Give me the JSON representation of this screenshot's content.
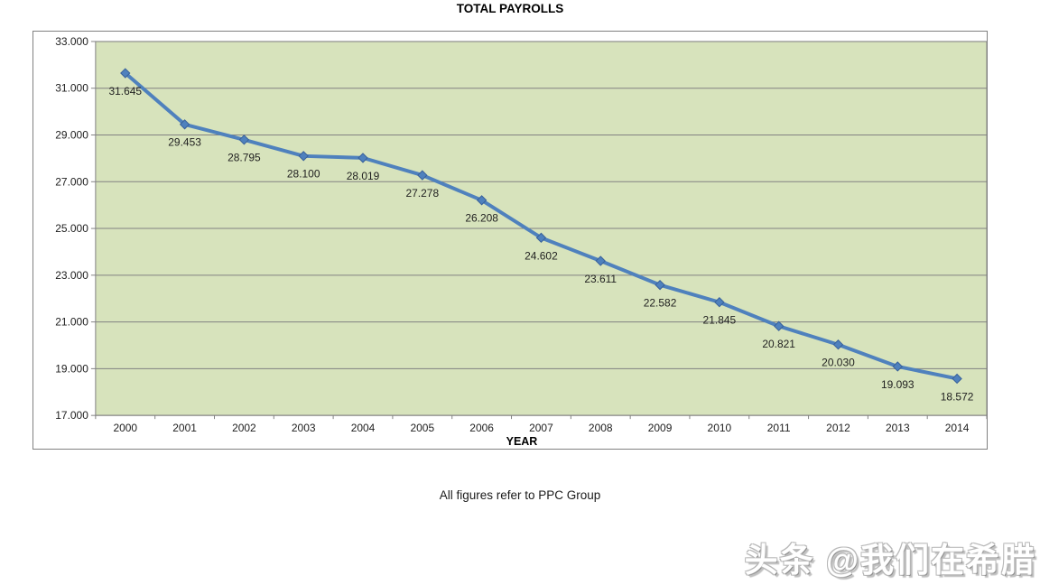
{
  "page": {
    "background": "#ffffff"
  },
  "chart_data": {
    "type": "line",
    "title": "TOTAL PAYROLLS",
    "categories": [
      "2000",
      "2001",
      "2002",
      "2003",
      "2004",
      "2005",
      "2006",
      "2007",
      "2008",
      "2009",
      "2010",
      "2011",
      "2012",
      "2013",
      "2014"
    ],
    "series": [
      {
        "name": "TOTAL PAYROLLS",
        "values": [
          31645,
          29453,
          28795,
          28100,
          28019,
          27278,
          26208,
          24602,
          23611,
          22582,
          21845,
          20821,
          20030,
          19093,
          18572
        ]
      }
    ],
    "point_labels": [
      "31.645",
      "29.453",
      "28.795",
      "28.100",
      "28.019",
      "27.278",
      "26.208",
      "24.602",
      "23.611",
      "22.582",
      "21.845",
      "20.821",
      "20.030",
      "19.093",
      "18.572"
    ],
    "xlabel": "YEAR",
    "ylabel": "",
    "ylim": [
      17000,
      33000
    ],
    "ytick_step": 2000,
    "ytick_labels": [
      "33.000",
      "31.000",
      "29.000",
      "27.000",
      "25.000",
      "23.000",
      "21.000",
      "19.000",
      "17.000"
    ],
    "grid": true,
    "legend": "none",
    "marker": "diamond",
    "colors": {
      "line": "#4F81BD",
      "marker_fill": "#4F81BD",
      "marker_border": "#38609A",
      "plot_bg": "#D7E3BC",
      "gridline": "#828282",
      "frame_border": "#808080",
      "axis_text": "#212121",
      "label_text": "#1f1f1f",
      "title_text": "#000000"
    }
  },
  "caption": "All figures refer to PPC Group",
  "watermark": "头条 @我们在希腊"
}
